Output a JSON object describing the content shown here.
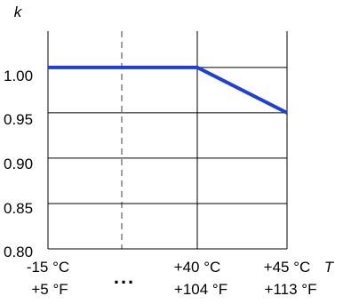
{
  "colors": {
    "line": "#1f3fd6",
    "grid": "#000000",
    "dashed": "#7f7f7f"
  },
  "chart_data": {
    "type": "line",
    "ylabel": "k",
    "xlabel": "T",
    "ylim": [
      0.8,
      1.04
    ],
    "y_ticks": [
      "1.00",
      "0.95",
      "0.90",
      "0.85",
      "0.80"
    ],
    "y_tick_values": [
      1.0,
      0.95,
      0.9,
      0.85,
      0.8
    ],
    "x_ticks": [
      {
        "line1": "-15 °C",
        "line2": "+5 °F"
      },
      {
        "line1": "+40 °C",
        "line2": "+104 °F"
      },
      {
        "line1": "+45 °C",
        "line2": "+113 °F"
      }
    ],
    "x_break_label": "...",
    "grid": true,
    "series": [
      {
        "points": [
          {
            "x": "-15 °C",
            "y": 1.0
          },
          {
            "x": "+40 °C",
            "y": 1.0
          },
          {
            "x": "+45 °C",
            "y": 0.95
          }
        ]
      }
    ]
  }
}
